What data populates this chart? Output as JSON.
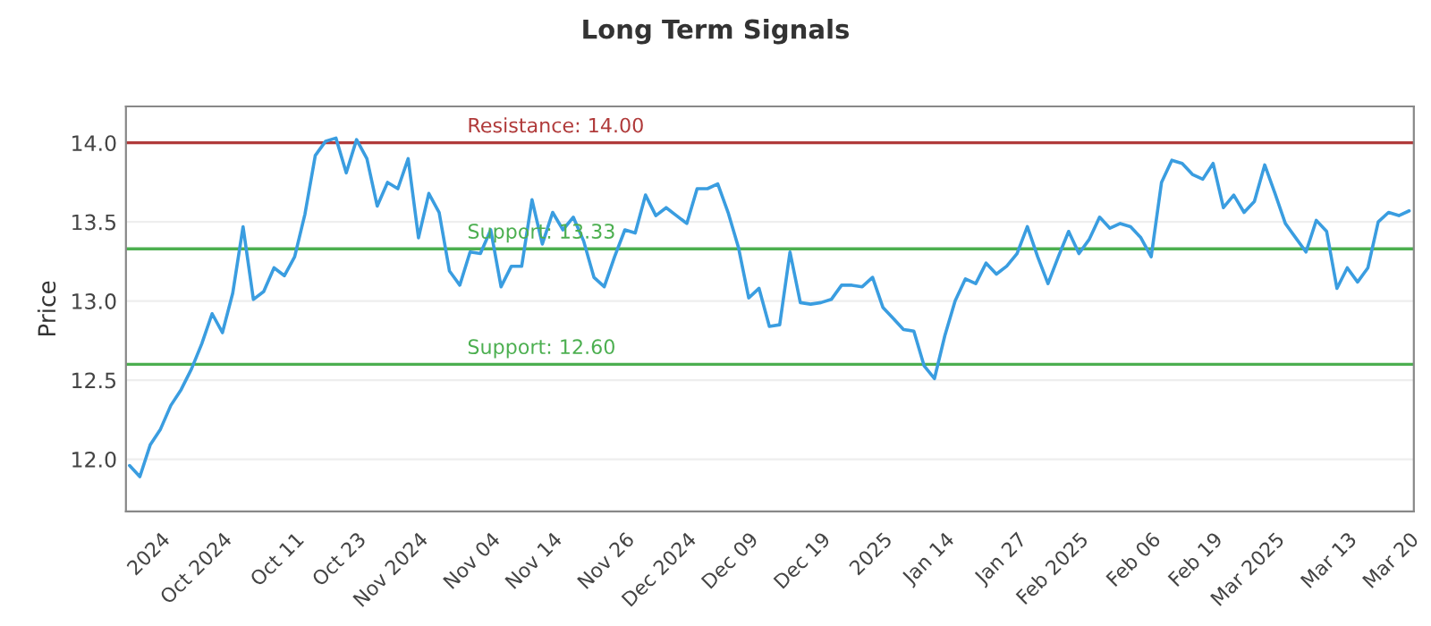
{
  "chart_data": {
    "type": "line",
    "title": "Long Term Signals",
    "ylabel": "Price",
    "categories": [
      null,
      null,
      null,
      "2024",
      null,
      null,
      null,
      null,
      null,
      "Oct 2024",
      null,
      null,
      null,
      null,
      null,
      null,
      "Oct 11",
      null,
      null,
      null,
      null,
      null,
      "Oct 23",
      null,
      null,
      null,
      null,
      null,
      "Nov 2024",
      null,
      null,
      null,
      null,
      null,
      null,
      "Nov 04",
      null,
      null,
      null,
      null,
      null,
      "Nov 14",
      null,
      null,
      null,
      null,
      null,
      null,
      "Nov 26",
      null,
      null,
      null,
      null,
      null,
      "Dec 2024",
      null,
      null,
      null,
      null,
      null,
      "Dec 09",
      null,
      null,
      null,
      null,
      null,
      null,
      "Dec 19",
      null,
      null,
      null,
      null,
      null,
      "2025",
      null,
      null,
      null,
      null,
      null,
      "Jan 14",
      null,
      null,
      null,
      null,
      null,
      null,
      "Jan 27",
      null,
      null,
      null,
      null,
      null,
      "Feb 2025",
      null,
      null,
      null,
      null,
      null,
      null,
      "Feb 06",
      null,
      null,
      null,
      null,
      null,
      "Feb 19",
      null,
      null,
      null,
      null,
      null,
      "Mar 2025",
      null,
      null,
      null,
      null,
      null,
      null,
      "Mar 13",
      null,
      null,
      null,
      null,
      null,
      "Mar 20"
    ],
    "series": [
      {
        "color": "#3a9de0",
        "values": [
          11.96,
          11.89,
          12.09,
          12.19,
          12.34,
          12.44,
          12.57,
          12.73,
          12.92,
          12.8,
          13.05,
          13.47,
          13.01,
          13.06,
          13.21,
          13.16,
          13.28,
          13.55,
          13.92,
          14.01,
          14.03,
          13.81,
          14.02,
          13.9,
          13.6,
          13.75,
          13.71,
          13.9,
          13.4,
          13.68,
          13.56,
          13.19,
          13.1,
          13.31,
          13.3,
          13.45,
          13.09,
          13.22,
          13.22,
          13.64,
          13.36,
          13.56,
          13.45,
          13.53,
          13.38,
          13.15,
          13.09,
          13.28,
          13.45,
          13.43,
          13.67,
          13.54,
          13.59,
          13.54,
          13.49,
          13.71,
          13.71,
          13.74,
          13.56,
          13.34,
          13.02,
          13.08,
          12.84,
          12.85,
          13.31,
          12.99,
          12.98,
          12.99,
          13.01,
          13.1,
          13.1,
          13.09,
          13.15,
          12.96,
          12.89,
          12.82,
          12.81,
          12.59,
          12.51,
          12.78,
          13.0,
          13.14,
          13.11,
          13.24,
          13.17,
          13.22,
          13.3,
          13.47,
          13.28,
          13.11,
          13.28,
          13.44,
          13.3,
          13.39,
          13.53,
          13.46,
          13.49,
          13.47,
          13.4,
          13.28,
          13.75,
          13.89,
          13.87,
          13.8,
          13.77,
          13.87,
          13.59,
          13.67,
          13.56,
          13.63,
          13.86,
          13.68,
          13.49,
          13.4,
          13.31,
          13.51,
          13.44,
          13.08,
          13.21,
          13.12,
          13.21,
          13.5,
          13.56,
          13.54,
          13.57
        ]
      }
    ],
    "ylim": [
      11.67,
      14.23
    ],
    "yticks": [
      {
        "value": 12.0,
        "label": "12.0"
      },
      {
        "value": 12.5,
        "label": "12.5"
      },
      {
        "value": 13.0,
        "label": "13.0"
      },
      {
        "value": 13.5,
        "label": "13.5"
      },
      {
        "value": 14.0,
        "label": "14.0"
      }
    ],
    "ref_lines": [
      {
        "axis": "y",
        "value": 14.0,
        "label": "Resistance: 14.00",
        "color": "#b03a3a"
      },
      {
        "axis": "y",
        "value": 13.33,
        "label": "Support: 13.33",
        "color": "#4caf50"
      },
      {
        "axis": "y",
        "value": 12.6,
        "label": "Support: 12.60",
        "color": "#4caf50"
      }
    ],
    "grid": "y",
    "marker": "none",
    "line_style": "solid"
  }
}
